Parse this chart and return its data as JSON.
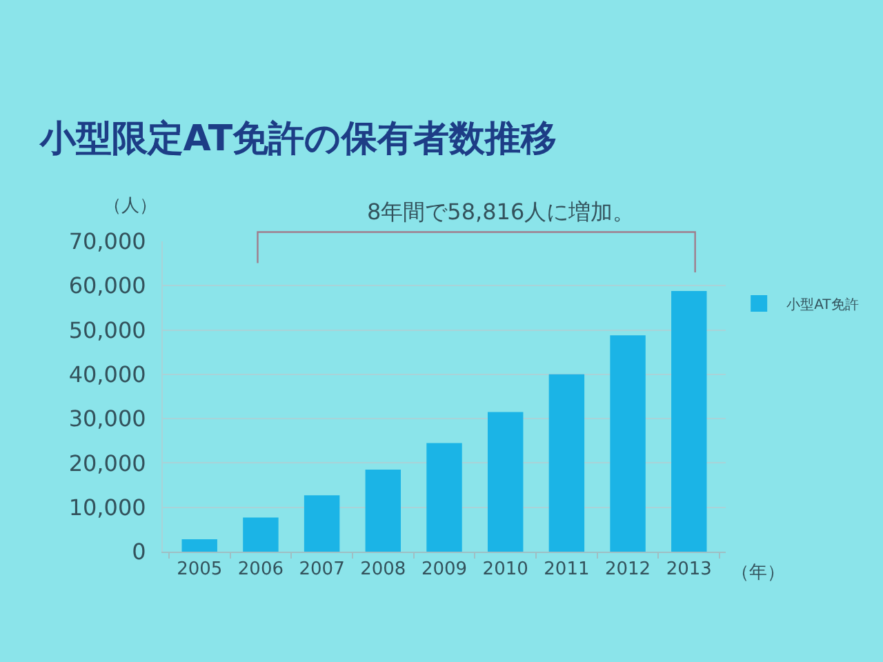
{
  "chart_data": {
    "type": "bar",
    "title": "小型限定AT免許の保有者数推移",
    "ylabel": "（人）",
    "xlabel": "（年）",
    "annotations": [
      "8年間で58,816人に増加。"
    ],
    "categories": [
      "2005",
      "2006",
      "2007",
      "2008",
      "2009",
      "2010",
      "2011",
      "2012",
      "2013"
    ],
    "series": [
      {
        "name": "小型AT免許",
        "color": "#1bb4e6",
        "values": [
          2800,
          7700,
          12700,
          18500,
          24500,
          31500,
          40000,
          48800,
          58816
        ]
      }
    ],
    "ylim": [
      0,
      70000
    ],
    "yticks": [
      0,
      {
        "value": 10000,
        "label": "10,000"
      },
      {
        "value": 20000,
        "label": "20,000"
      },
      {
        "value": 30000,
        "label": "30,000"
      },
      {
        "value": 40000,
        "label": "40,000"
      },
      {
        "value": 50000,
        "label": "50,000"
      },
      {
        "value": 60000,
        "label": "60,000"
      },
      {
        "value": 70000,
        "label": "70,000"
      }
    ],
    "grid": "y",
    "legend": "right"
  }
}
